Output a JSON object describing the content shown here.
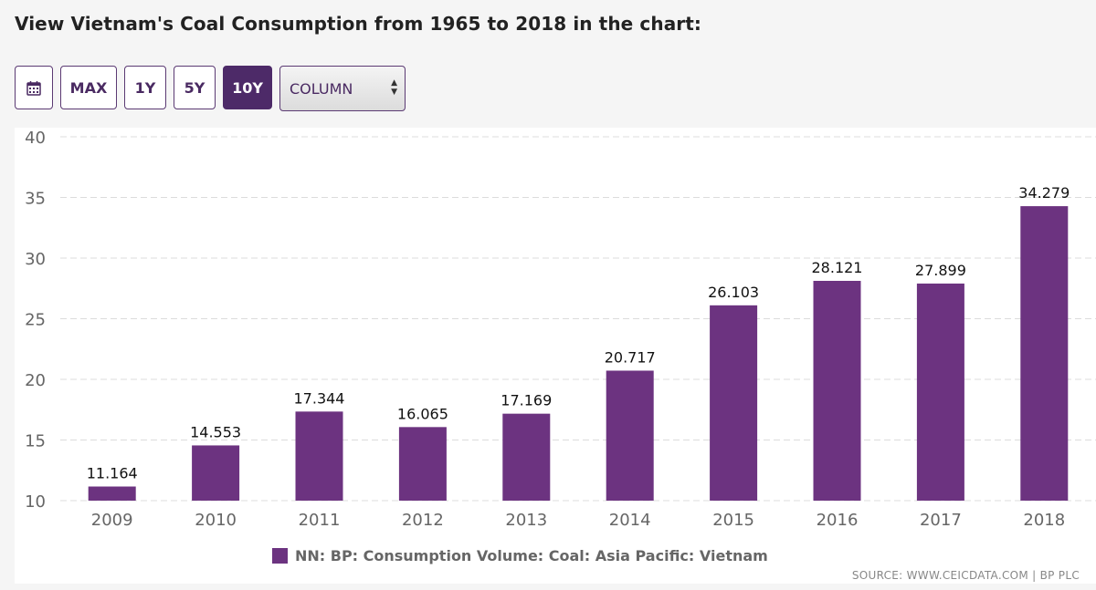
{
  "page_title": "View Vietnam's Coal Consumption from 1965 to 2018 in the chart:",
  "toolbar": {
    "calendar_icon": "calendar-icon",
    "buttons": [
      "MAX",
      "1Y",
      "5Y",
      "10Y"
    ],
    "active_button": "10Y",
    "chart_type_value": "COLUMN"
  },
  "colors": {
    "bar": "#6c3380",
    "accent": "#4d2a68"
  },
  "chart_data": {
    "type": "bar",
    "categories": [
      "2009",
      "2010",
      "2011",
      "2012",
      "2013",
      "2014",
      "2015",
      "2016",
      "2017",
      "2018"
    ],
    "series": [
      {
        "name": "NN: BP: Consumption Volume: Coal: Asia Pacific: Vietnam",
        "values": [
          11.164,
          14.553,
          17.344,
          16.065,
          17.169,
          20.717,
          26.103,
          28.121,
          27.899,
          34.279
        ]
      }
    ],
    "data_labels": [
      "11.164",
      "14.553",
      "17.344",
      "16.065",
      "17.169",
      "20.717",
      "26.103",
      "28.121",
      "27.899",
      "34.279"
    ],
    "ylim": [
      10,
      40
    ],
    "yticks": [
      "10",
      "15",
      "20",
      "25",
      "30",
      "35",
      "40"
    ],
    "grid": true,
    "legend_position": "bottom"
  },
  "source_text": "SOURCE: WWW.CEICDATA.COM | BP PLC"
}
